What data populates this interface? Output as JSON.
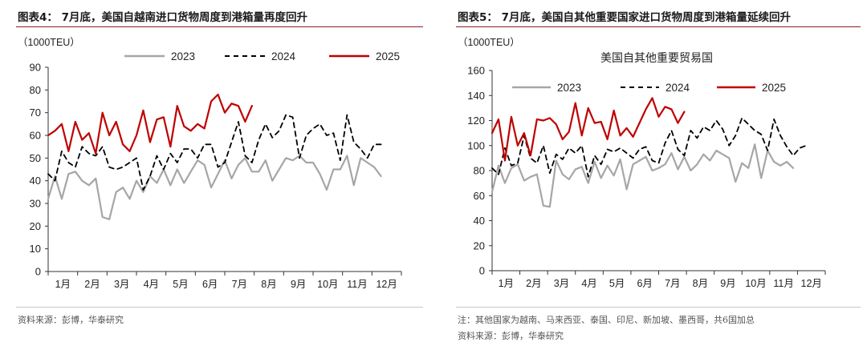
{
  "left": {
    "title": "图表4： 7月底，美国自越南进口货物周度到港箱量再度回升",
    "source": "资料来源：彭博，华泰研究",
    "chart_data": {
      "type": "line",
      "subtitle": "",
      "ylabel": "（1000TEU）",
      "ylim": [
        0,
        90
      ],
      "yticks": [
        0,
        10,
        20,
        30,
        40,
        50,
        60,
        70,
        80,
        90
      ],
      "xlabel": "",
      "x_week_range": [
        0,
        52
      ],
      "x_month_labels": [
        "1月",
        "2月",
        "3月",
        "4月",
        "5月",
        "6月",
        "7月",
        "8月",
        "9月",
        "10月",
        "11月",
        "12月"
      ],
      "grid": false,
      "legend_position": "top",
      "series": [
        {
          "name": "2023",
          "color": "#a6a6a6",
          "dash": "solid",
          "values": [
            32,
            42,
            32,
            43,
            44,
            40,
            38,
            41,
            24,
            23,
            35,
            37,
            32,
            40,
            35,
            42,
            39,
            45,
            38,
            45,
            39,
            44,
            49,
            47,
            37,
            43,
            49,
            41,
            47,
            50,
            44,
            44,
            49,
            40,
            45,
            50,
            49,
            51,
            48,
            48,
            43,
            36,
            45,
            45,
            51,
            38,
            50,
            48,
            46,
            42
          ]
        },
        {
          "name": "2024",
          "color": "#000000",
          "dash": "dashed",
          "values": [
            43,
            40,
            53,
            48,
            46,
            55,
            52,
            51,
            55,
            46,
            45,
            46,
            48,
            50,
            36,
            42,
            51,
            45,
            52,
            48,
            54,
            54,
            50,
            56,
            56,
            46,
            48,
            57,
            66,
            51,
            48,
            58,
            65,
            59,
            62,
            69,
            68,
            50,
            60,
            63,
            65,
            60,
            61,
            49,
            69,
            57,
            54,
            50,
            56,
            56
          ]
        },
        {
          "name": "2025",
          "color": "#c00000",
          "dash": "solid",
          "values": [
            60,
            62,
            65,
            53,
            66,
            58,
            61,
            52,
            70,
            60,
            66,
            56,
            53,
            60,
            71,
            57,
            67,
            68,
            55,
            73,
            64,
            62,
            65,
            63,
            75,
            78,
            70,
            74,
            73,
            66,
            73
          ]
        }
      ]
    }
  },
  "right": {
    "title": "图表5： 7月底，美国自其他重要国家进口货物周度到港箱量延续回升",
    "note": "注：其他国家为越南、马来西亚、泰国、印尼、新加坡、墨西哥，共6国加总",
    "source": "资料来源：彭博，华泰研究",
    "chart_data": {
      "type": "line",
      "subtitle": "美国自其他重要贸易国",
      "ylabel": "（1000TEU）",
      "ylim": [
        0,
        160
      ],
      "yticks": [
        0,
        20,
        40,
        60,
        80,
        100,
        120,
        140,
        160
      ],
      "xlabel": "",
      "x_week_range": [
        0,
        52
      ],
      "x_month_labels": [
        "1月",
        "2月",
        "3月",
        "4月",
        "5月",
        "6月",
        "7月",
        "8月",
        "9月",
        "10月",
        "11月",
        "12月"
      ],
      "grid": false,
      "legend_position": "top",
      "series": [
        {
          "name": "2023",
          "color": "#a6a6a6",
          "dash": "solid",
          "values": [
            63,
            84,
            70,
            82,
            85,
            72,
            75,
            77,
            52,
            51,
            88,
            77,
            73,
            81,
            83,
            70,
            87,
            74,
            84,
            76,
            89,
            65,
            85,
            88,
            91,
            80,
            82,
            85,
            94,
            81,
            91,
            80,
            85,
            93,
            88,
            96,
            93,
            90,
            71,
            86,
            82,
            101,
            74,
            96,
            87,
            84,
            87,
            82
          ]
        },
        {
          "name": "2024",
          "color": "#000000",
          "dash": "dashed",
          "values": [
            82,
            77,
            98,
            84,
            86,
            108,
            90,
            86,
            100,
            78,
            93,
            89,
            98,
            94,
            100,
            75,
            92,
            85,
            97,
            95,
            98,
            94,
            90,
            97,
            99,
            88,
            86,
            102,
            112,
            97,
            92,
            112,
            106,
            115,
            112,
            120,
            113,
            100,
            108,
            122,
            117,
            112,
            109,
            96,
            121,
            108,
            99,
            92,
            98,
            100
          ]
        },
        {
          "name": "2025",
          "color": "#c00000",
          "dash": "solid",
          "values": [
            110,
            121,
            88,
            123,
            100,
            110,
            92,
            121,
            120,
            122,
            117,
            105,
            111,
            134,
            108,
            130,
            118,
            119,
            105,
            128,
            108,
            114,
            107,
            118,
            129,
            138,
            123,
            131,
            129,
            118,
            127
          ]
        }
      ]
    }
  }
}
